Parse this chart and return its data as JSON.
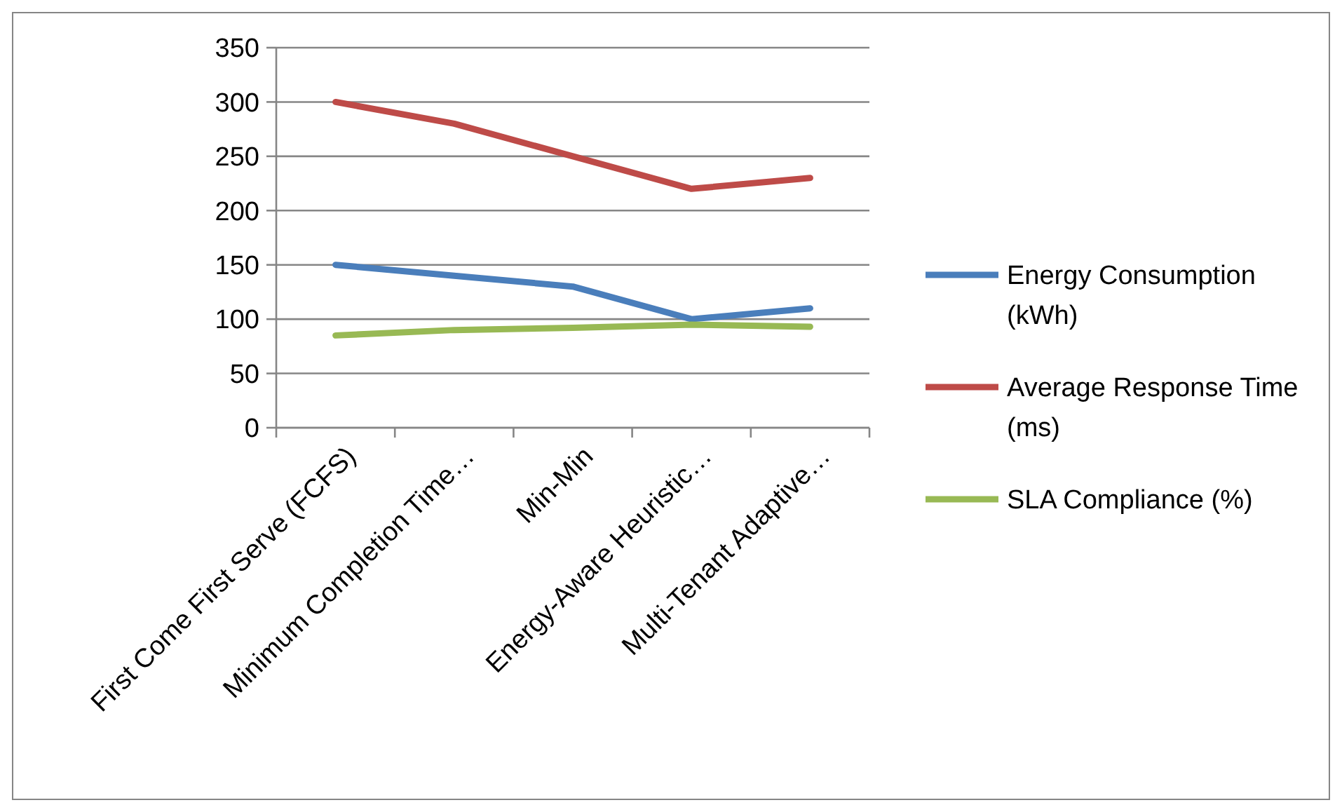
{
  "chart_data": {
    "type": "line",
    "categories": [
      "First Come First Serve (FCFS)",
      "Minimum Completion Time…",
      "Min-Min",
      "Energy-Aware Heuristic…",
      "Multi-Tenant Adaptive…"
    ],
    "series": [
      {
        "name": "Energy Consumption (kWh)",
        "color": "#4a7ebb",
        "values": [
          150,
          140,
          130,
          100,
          110
        ]
      },
      {
        "name": "Average Response Time (ms)",
        "color": "#be4b48",
        "values": [
          300,
          280,
          250,
          220,
          230
        ]
      },
      {
        "name": "SLA Compliance (%)",
        "color": "#98b954",
        "values": [
          85,
          90,
          92,
          95,
          93
        ]
      }
    ],
    "ylim": [
      0,
      350
    ],
    "yticks": [
      0,
      50,
      100,
      150,
      200,
      250,
      300,
      350
    ],
    "grid": "y",
    "legend": "right",
    "marker": "none",
    "line_style": "solid"
  }
}
